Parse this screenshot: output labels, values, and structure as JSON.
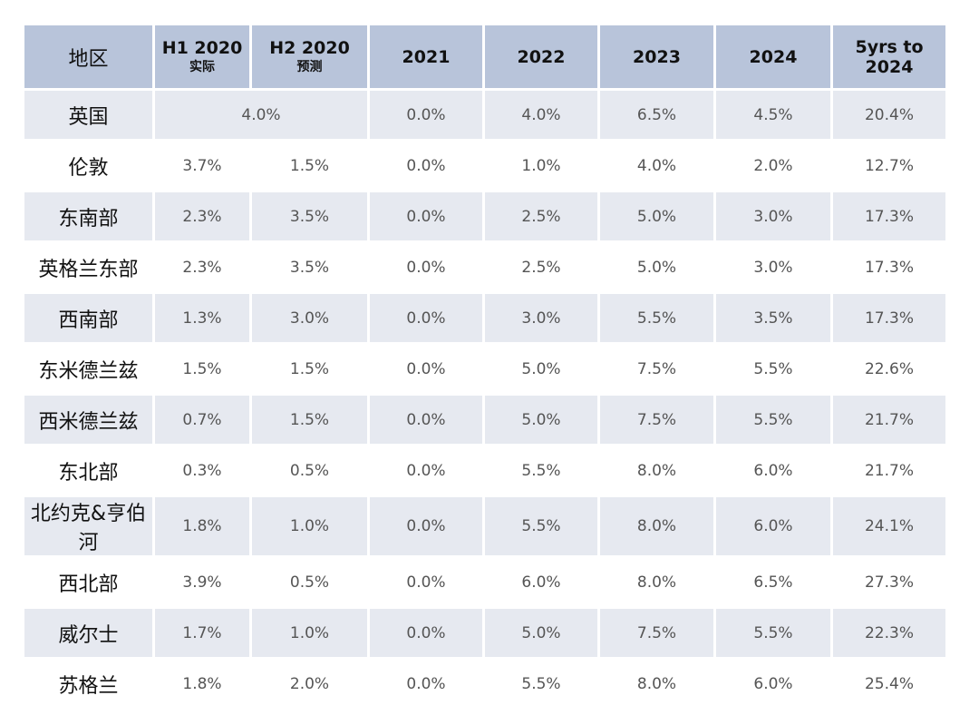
{
  "chart_data": {
    "type": "table",
    "columns": [
      {
        "label": "地区",
        "sub": ""
      },
      {
        "label": "H1 2020",
        "sub": "实际"
      },
      {
        "label": "H2 2020",
        "sub": "预测"
      },
      {
        "label": "2021",
        "sub": ""
      },
      {
        "label": "2022",
        "sub": ""
      },
      {
        "label": "2023",
        "sub": ""
      },
      {
        "label": "2024",
        "sub": ""
      },
      {
        "label": "5yrs to 2024",
        "sub": ""
      }
    ],
    "rows": [
      {
        "region": "英国",
        "h1_2020": "4.0%",
        "h2_2020": "4.0%",
        "y2021": "0.0%",
        "y2022": "4.0%",
        "y2023": "6.5%",
        "y2024": "4.5%",
        "five_yr": "20.4%",
        "merged_2020": true
      },
      {
        "region": "伦敦",
        "h1_2020": "3.7%",
        "h2_2020": "1.5%",
        "y2021": "0.0%",
        "y2022": "1.0%",
        "y2023": "4.0%",
        "y2024": "2.0%",
        "five_yr": "12.7%"
      },
      {
        "region": "东南部",
        "h1_2020": "2.3%",
        "h2_2020": "3.5%",
        "y2021": "0.0%",
        "y2022": "2.5%",
        "y2023": "5.0%",
        "y2024": "3.0%",
        "five_yr": "17.3%"
      },
      {
        "region": "英格兰东部",
        "h1_2020": "2.3%",
        "h2_2020": "3.5%",
        "y2021": "0.0%",
        "y2022": "2.5%",
        "y2023": "5.0%",
        "y2024": "3.0%",
        "five_yr": "17.3%"
      },
      {
        "region": "西南部",
        "h1_2020": "1.3%",
        "h2_2020": "3.0%",
        "y2021": "0.0%",
        "y2022": "3.0%",
        "y2023": "5.5%",
        "y2024": "3.5%",
        "five_yr": "17.3%"
      },
      {
        "region": "东米德兰兹",
        "h1_2020": "1.5%",
        "h2_2020": "1.5%",
        "y2021": "0.0%",
        "y2022": "5.0%",
        "y2023": "7.5%",
        "y2024": "5.5%",
        "five_yr": "22.6%"
      },
      {
        "region": "西米德兰兹",
        "h1_2020": "0.7%",
        "h2_2020": "1.5%",
        "y2021": "0.0%",
        "y2022": "5.0%",
        "y2023": "7.5%",
        "y2024": "5.5%",
        "five_yr": "21.7%"
      },
      {
        "region": "东北部",
        "h1_2020": "0.3%",
        "h2_2020": "0.5%",
        "y2021": "0.0%",
        "y2022": "5.5%",
        "y2023": "8.0%",
        "y2024": "6.0%",
        "five_yr": "21.7%"
      },
      {
        "region": "北约克&亨伯河",
        "h1_2020": "1.8%",
        "h2_2020": "1.0%",
        "y2021": "0.0%",
        "y2022": "5.5%",
        "y2023": "8.0%",
        "y2024": "6.0%",
        "five_yr": "24.1%"
      },
      {
        "region": "西北部",
        "h1_2020": "3.9%",
        "h2_2020": "0.5%",
        "y2021": "0.0%",
        "y2022": "6.0%",
        "y2023": "8.0%",
        "y2024": "6.5%",
        "five_yr": "27.3%"
      },
      {
        "region": "威尔士",
        "h1_2020": "1.7%",
        "h2_2020": "1.0%",
        "y2021": "0.0%",
        "y2022": "5.0%",
        "y2023": "7.5%",
        "y2024": "5.5%",
        "five_yr": "22.3%"
      },
      {
        "region": "苏格兰",
        "h1_2020": "1.8%",
        "h2_2020": "2.0%",
        "y2021": "0.0%",
        "y2022": "5.5%",
        "y2023": "8.0%",
        "y2024": "6.0%",
        "five_yr": "25.4%"
      }
    ],
    "colors": {
      "header_bg": "#b8c4da",
      "band_bg": "#e6e9f0",
      "row_bg": "#ffffff"
    }
  }
}
